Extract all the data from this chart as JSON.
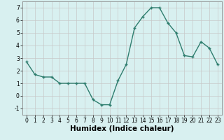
{
  "x": [
    0,
    1,
    2,
    3,
    4,
    5,
    6,
    7,
    8,
    9,
    10,
    11,
    12,
    13,
    14,
    15,
    16,
    17,
    18,
    19,
    20,
    21,
    22,
    23
  ],
  "y": [
    2.7,
    1.7,
    1.5,
    1.5,
    1.0,
    1.0,
    1.0,
    1.0,
    -0.3,
    -0.7,
    -0.7,
    1.2,
    2.5,
    5.4,
    6.3,
    7.0,
    7.0,
    5.8,
    5.0,
    3.2,
    3.1,
    4.3,
    3.8,
    2.5
  ],
  "line_color": "#2e7d6e",
  "marker": "+",
  "marker_size": 3,
  "bg_color": "#d8f0f0",
  "grid_color": "#c8c8c8",
  "xlabel": "Humidex (Indice chaleur)",
  "xlim": [
    -0.5,
    23.5
  ],
  "ylim": [
    -1.5,
    7.5
  ],
  "yticks": [
    -1,
    0,
    1,
    2,
    3,
    4,
    5,
    6,
    7
  ],
  "xticks": [
    0,
    1,
    2,
    3,
    4,
    5,
    6,
    7,
    8,
    9,
    10,
    11,
    12,
    13,
    14,
    15,
    16,
    17,
    18,
    19,
    20,
    21,
    22,
    23
  ],
  "tick_fontsize": 5.5,
  "xlabel_fontsize": 7.5,
  "line_width": 1.0,
  "marker_edge_width": 1.0
}
